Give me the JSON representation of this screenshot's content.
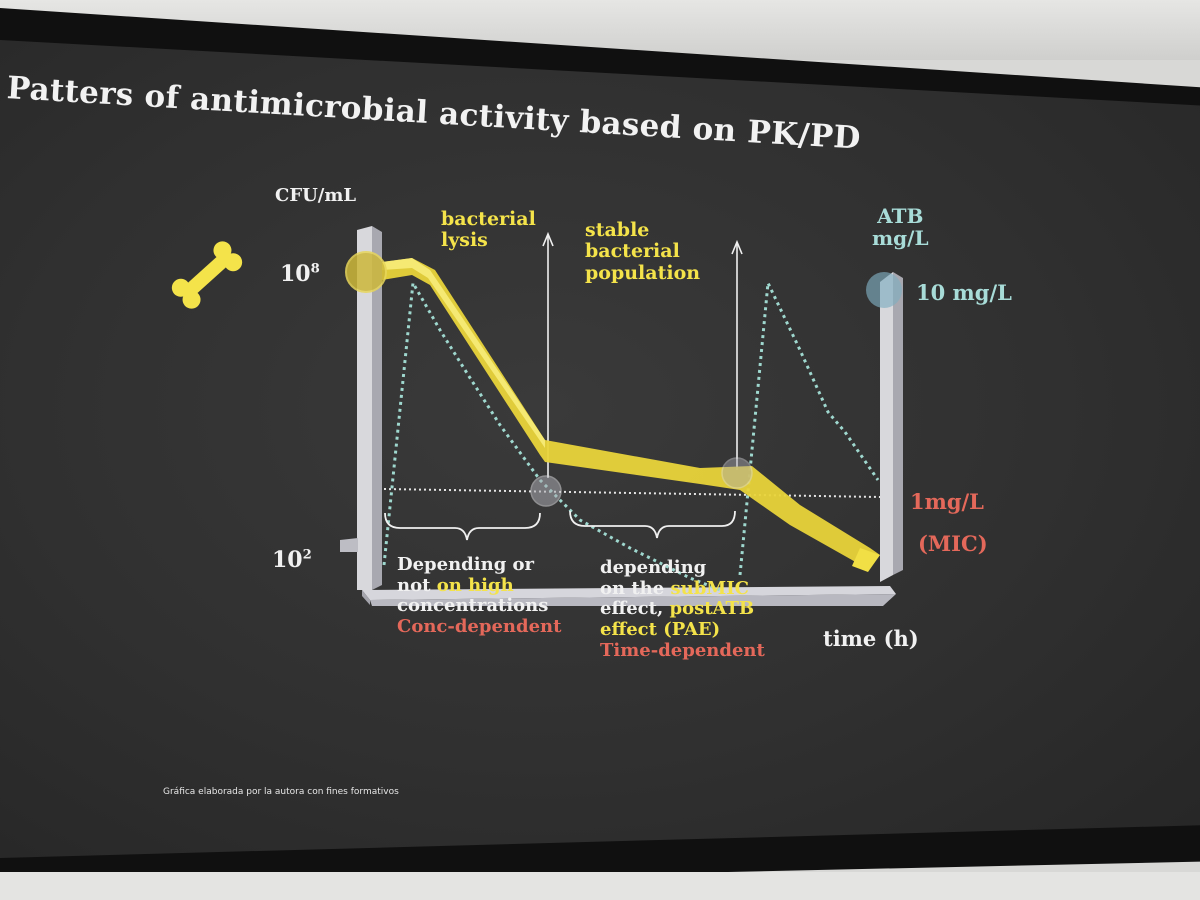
{
  "title": "Patters of antimicrobial activity based on PK/PD",
  "y_axis_left": {
    "label": "CFU/mL",
    "tick_high": "10",
    "tick_high_exp": "8",
    "tick_low": "10",
    "tick_low_exp": "2"
  },
  "y_axis_right": {
    "label_line1": "ATB",
    "label_line2": "mg/L",
    "top_value": "10 mg/L",
    "mic_value": "1mg/L",
    "mic_label": "(MIC)"
  },
  "x_axis": {
    "label": "time (h)"
  },
  "phases": {
    "lysis_line1": "bacterial",
    "lysis_line2": "lysis",
    "stable_line1": "stable",
    "stable_line2": "bacterial",
    "stable_line3": "population"
  },
  "left_bracket": {
    "line1": "Depending or",
    "line2_a": "not",
    "line2_b": "on high",
    "line3": "concentrations",
    "line4": "Conc-dependent"
  },
  "right_bracket": {
    "line1": "depending",
    "line2_a": "on the",
    "line2_b": "subMIC",
    "line3_a": "effect,",
    "line3_b": "postATB",
    "line4": "effect (PAE)",
    "line5": "Time-dependent"
  },
  "footnote": "Gráfica elaborada por la autora con fines formativos",
  "icon": "bone-icon",
  "colors": {
    "bacteria_curve": "#f4e34a",
    "drug_curve": "#9fd8cf",
    "mic_line": "#e6e6e6",
    "text_white": "#f1f1f1",
    "text_red": "#e4685a",
    "text_cyan": "#a8dcd8",
    "background": "#333333"
  }
}
